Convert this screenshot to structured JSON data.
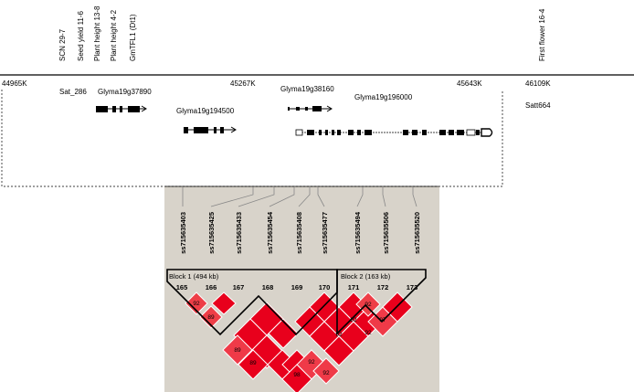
{
  "traits": [
    "SCN 29-7",
    "Seed yield 11-6",
    "Plant height 13-8",
    "Plant height 4-2",
    "GmTFL1 (Dt1)",
    "First flower 16-4"
  ],
  "positions": [
    "44965K",
    "45267K",
    "45643K",
    "46109K"
  ],
  "markers": [
    "Sat_286",
    "Satt664"
  ],
  "genes": [
    "Glyma19g37890",
    "Glyma19g194500",
    "Glyma19g38160",
    "Glyma19g196000"
  ],
  "snps": [
    "ss715635403",
    "ss715635425",
    "ss715635433",
    "ss715635454",
    "ss715635408",
    "ss715635477",
    "ss715635494",
    "ss715635506",
    "ss715635520"
  ],
  "blocks": [
    "Block 1 (494 kb)",
    "Block 2 (163 kb)"
  ],
  "block_numbers": [
    "165",
    "166",
    "167",
    "168",
    "169",
    "170",
    "171",
    "172",
    "173"
  ],
  "ld_values": [
    "92",
    "89",
    "89",
    "89",
    "98",
    "92",
    "92",
    "92",
    "92",
    "92",
    "97",
    "92"
  ],
  "colors": {
    "ld_strong": "#e8001c",
    "ld_light": "#ef3a48",
    "panel": "#d8d3ca"
  }
}
